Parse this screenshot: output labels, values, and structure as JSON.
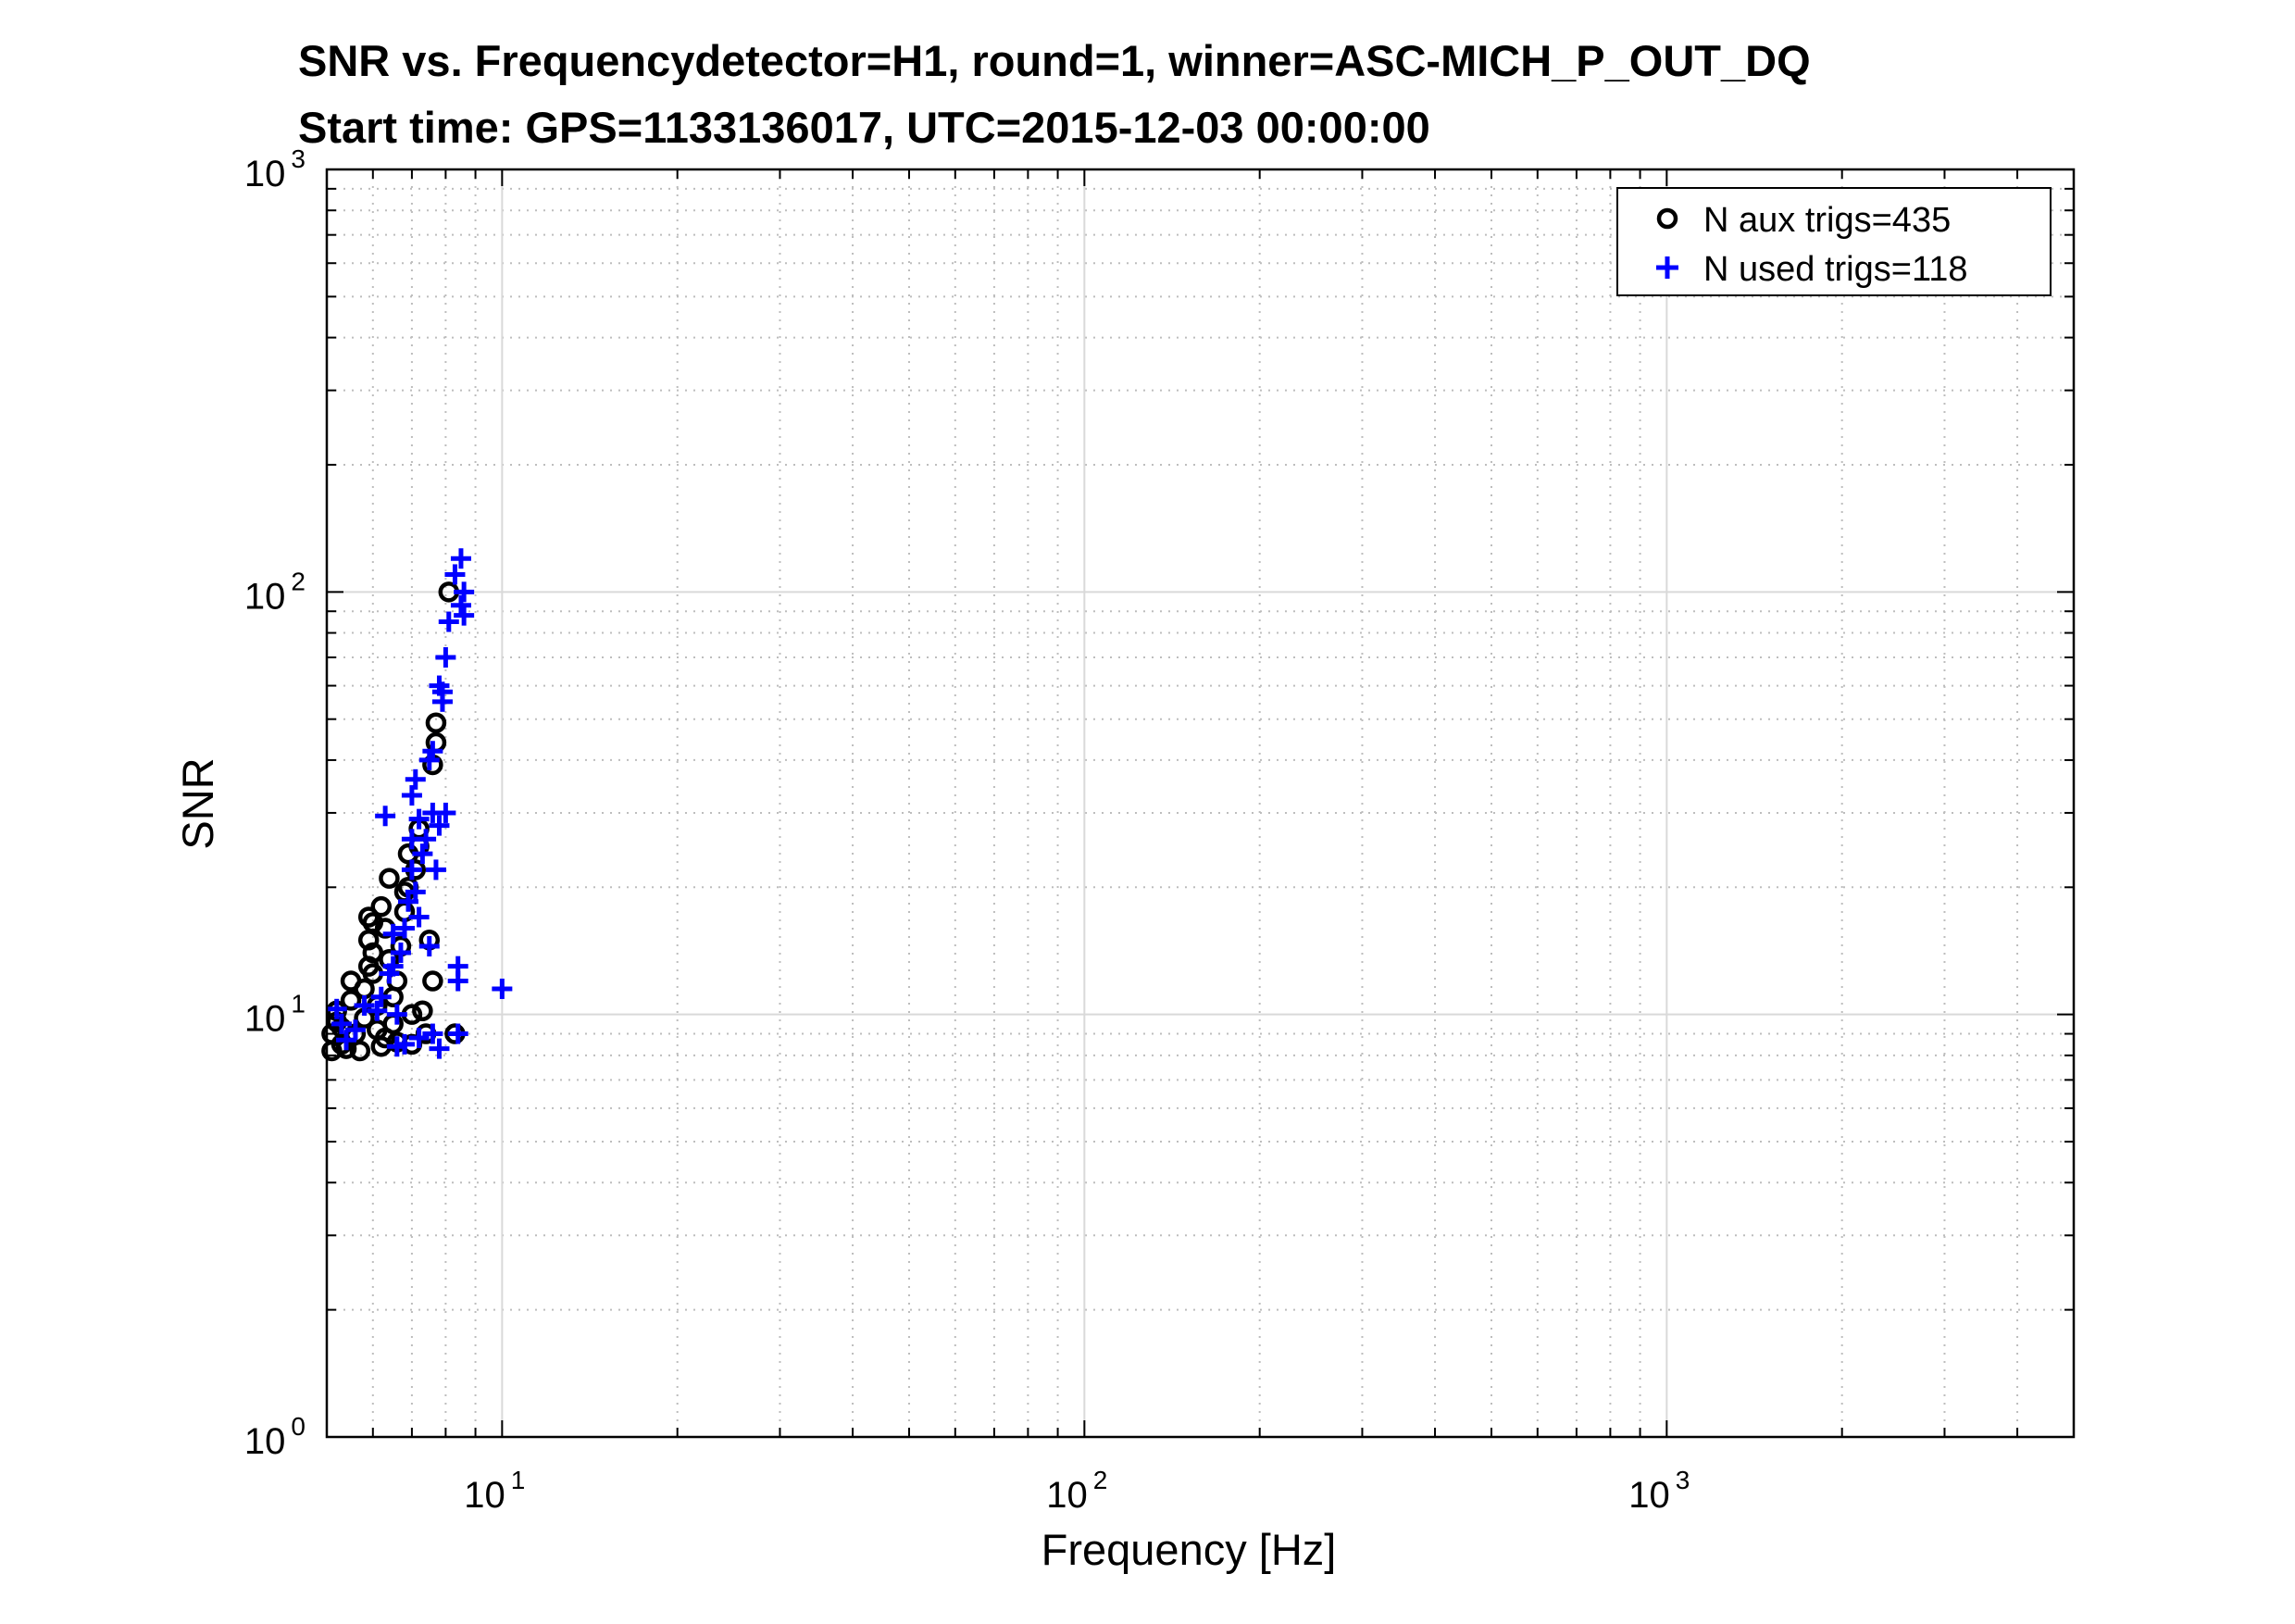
{
  "chart_data": {
    "type": "scatter",
    "title": "SNR vs. Frequencydetector=H1, round=1, winner=ASC-MICH_P_OUT_DQ",
    "subtitle": "Start time: GPS=1133136017, UTC=2015-12-03 00:00:00",
    "xlabel": "Frequency [Hz]",
    "ylabel": "SNR",
    "x_scale": "log",
    "y_scale": "log",
    "xlim": [
      5,
      5000
    ],
    "ylim": [
      1,
      1000
    ],
    "grid": true,
    "legend_position": "top-right",
    "x_ticks": [
      {
        "base": "10",
        "exp": "1",
        "value": 10
      },
      {
        "base": "10",
        "exp": "2",
        "value": 100
      },
      {
        "base": "10",
        "exp": "3",
        "value": 1000
      }
    ],
    "y_ticks": [
      {
        "base": "10",
        "exp": "0",
        "value": 1
      },
      {
        "base": "10",
        "exp": "1",
        "value": 10
      },
      {
        "base": "10",
        "exp": "2",
        "value": 100
      },
      {
        "base": "10",
        "exp": "3",
        "value": 1000
      }
    ],
    "series": [
      {
        "name": "N aux trigs=435",
        "marker": "circle",
        "color": "#000000",
        "points": [
          [
            5.1,
            8.2
          ],
          [
            5.1,
            9.0
          ],
          [
            5.2,
            9.6
          ],
          [
            5.2,
            10.2
          ],
          [
            5.3,
            8.5
          ],
          [
            5.3,
            9.3
          ],
          [
            5.4,
            8.3
          ],
          [
            5.5,
            12.0
          ],
          [
            5.5,
            10.8
          ],
          [
            5.6,
            9.0
          ],
          [
            5.7,
            8.2
          ],
          [
            5.8,
            9.8
          ],
          [
            5.8,
            11.5
          ],
          [
            5.9,
            13.0
          ],
          [
            5.9,
            15.0
          ],
          [
            5.9,
            17.0
          ],
          [
            6.0,
            16.5
          ],
          [
            6.0,
            14.0
          ],
          [
            6.0,
            12.5
          ],
          [
            6.1,
            10.5
          ],
          [
            6.1,
            9.2
          ],
          [
            6.2,
            8.4
          ],
          [
            6.2,
            18.0
          ],
          [
            6.3,
            16.0
          ],
          [
            6.4,
            21.0
          ],
          [
            6.4,
            13.5
          ],
          [
            6.5,
            11.0
          ],
          [
            6.5,
            9.5
          ],
          [
            6.6,
            8.6
          ],
          [
            6.6,
            12.0
          ],
          [
            6.7,
            14.5
          ],
          [
            6.8,
            17.5
          ],
          [
            6.8,
            19.5
          ],
          [
            6.9,
            24.0
          ],
          [
            6.9,
            20.0
          ],
          [
            7.0,
            10.0
          ],
          [
            7.0,
            8.5
          ],
          [
            7.1,
            22.0
          ],
          [
            7.2,
            25.0
          ],
          [
            7.2,
            27.5
          ],
          [
            7.3,
            10.2
          ],
          [
            7.4,
            9.0
          ],
          [
            7.5,
            15.0
          ],
          [
            7.6,
            12.0
          ],
          [
            7.6,
            39.0
          ],
          [
            7.7,
            44.0
          ],
          [
            7.7,
            49.0
          ],
          [
            8.1,
            100.0
          ],
          [
            8.3,
            9.0
          ],
          [
            6.3,
            8.8
          ]
        ]
      },
      {
        "name": "N used trigs=118",
        "marker": "plus",
        "color": "#0000ff",
        "points": [
          [
            5.2,
            10.3
          ],
          [
            5.3,
            9.5
          ],
          [
            5.4,
            8.7
          ],
          [
            5.6,
            9.2
          ],
          [
            5.8,
            10.5
          ],
          [
            6.1,
            10.2
          ],
          [
            6.2,
            11.0
          ],
          [
            6.3,
            29.5
          ],
          [
            6.4,
            12.5
          ],
          [
            6.5,
            13.0
          ],
          [
            6.5,
            15.5
          ],
          [
            6.6,
            10.0
          ],
          [
            6.6,
            8.4
          ],
          [
            6.7,
            14.0
          ],
          [
            6.8,
            16.0
          ],
          [
            6.9,
            18.5
          ],
          [
            7.0,
            22.0
          ],
          [
            7.0,
            26.0
          ],
          [
            7.0,
            33.0
          ],
          [
            7.1,
            36.0
          ],
          [
            7.1,
            19.5
          ],
          [
            7.2,
            17.0
          ],
          [
            7.2,
            29.0
          ],
          [
            7.3,
            24.0
          ],
          [
            7.4,
            26.0
          ],
          [
            7.5,
            40.0
          ],
          [
            7.6,
            42.0
          ],
          [
            7.6,
            30.0
          ],
          [
            7.7,
            22.0
          ],
          [
            7.8,
            60.0
          ],
          [
            7.8,
            28.0
          ],
          [
            7.9,
            58.0
          ],
          [
            7.9,
            55.0
          ],
          [
            8.0,
            70.0
          ],
          [
            8.0,
            30.0
          ],
          [
            7.5,
            14.5
          ],
          [
            7.6,
            9.0
          ],
          [
            7.8,
            8.3
          ],
          [
            8.1,
            85.0
          ],
          [
            8.3,
            110.0
          ],
          [
            8.5,
            120.0
          ],
          [
            8.5,
            93.0
          ],
          [
            8.6,
            100.0
          ],
          [
            8.6,
            88.0
          ],
          [
            8.4,
            13.0
          ],
          [
            8.4,
            12.0
          ],
          [
            8.4,
            9.0
          ],
          [
            10.0,
            11.5
          ],
          [
            6.8,
            8.5
          ],
          [
            7.2,
            8.8
          ]
        ]
      }
    ]
  }
}
